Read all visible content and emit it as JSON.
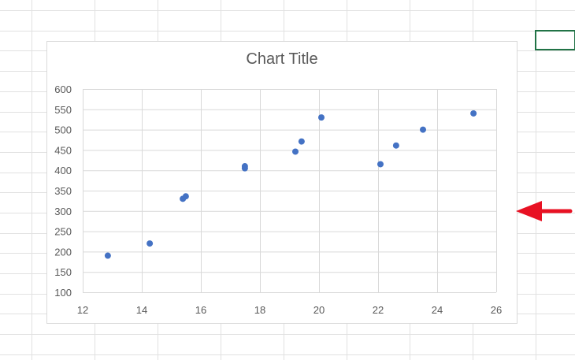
{
  "chart_data": {
    "type": "scatter",
    "title": "Chart Title",
    "xlim": [
      12,
      26
    ],
    "ylim": [
      100,
      600
    ],
    "x_ticks": [
      12,
      14,
      16,
      18,
      20,
      22,
      24,
      26
    ],
    "y_ticks": [
      100,
      150,
      200,
      250,
      300,
      350,
      400,
      450,
      500,
      550,
      600
    ],
    "grid": true,
    "marker_color": "#4472C4",
    "points": [
      {
        "x": 12.85,
        "y": 190
      },
      {
        "x": 14.27,
        "y": 220
      },
      {
        "x": 15.39,
        "y": 330
      },
      {
        "x": 15.49,
        "y": 336
      },
      {
        "x": 17.49,
        "y": 410
      },
      {
        "x": 17.49,
        "y": 405
      },
      {
        "x": 19.2,
        "y": 446
      },
      {
        "x": 19.41,
        "y": 471
      },
      {
        "x": 20.08,
        "y": 530
      },
      {
        "x": 22.08,
        "y": 415
      },
      {
        "x": 22.61,
        "y": 461
      },
      {
        "x": 23.52,
        "y": 500
      },
      {
        "x": 25.23,
        "y": 540
      }
    ]
  },
  "annotation": {
    "arrow_color": "#E81123",
    "arrow_direction": "left"
  },
  "sheet": {
    "selected_border_color": "#217346"
  }
}
